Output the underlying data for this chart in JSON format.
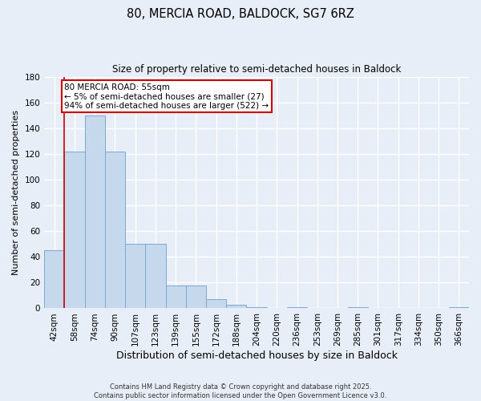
{
  "title": "80, MERCIA ROAD, BALDOCK, SG7 6RZ",
  "subtitle": "Size of property relative to semi-detached houses in Baldock",
  "xlabel": "Distribution of semi-detached houses by size in Baldock",
  "ylabel": "Number of semi-detached properties",
  "categories": [
    "42sqm",
    "58sqm",
    "74sqm",
    "90sqm",
    "107sqm",
    "123sqm",
    "139sqm",
    "155sqm",
    "172sqm",
    "188sqm",
    "204sqm",
    "220sqm",
    "236sqm",
    "253sqm",
    "269sqm",
    "285sqm",
    "301sqm",
    "317sqm",
    "334sqm",
    "350sqm",
    "366sqm"
  ],
  "values": [
    45,
    122,
    150,
    122,
    50,
    50,
    18,
    18,
    7,
    3,
    1,
    0,
    1,
    0,
    0,
    1,
    0,
    0,
    0,
    0,
    1
  ],
  "bar_color": "#c5d8ec",
  "bar_edge_color": "#7aaad0",
  "ylim": [
    0,
    180
  ],
  "yticks": [
    0,
    20,
    40,
    60,
    80,
    100,
    120,
    140,
    160,
    180
  ],
  "annotation_text": "80 MERCIA ROAD: 55sqm\n← 5% of semi-detached houses are smaller (27)\n94% of semi-detached houses are larger (522) →",
  "annotation_box_color": "#ffffff",
  "annotation_border_color": "#cc0000",
  "vline_color": "#cc0000",
  "background_color": "#e8eef7",
  "grid_color": "#ffffff",
  "footer_text": "Contains HM Land Registry data © Crown copyright and database right 2025.\nContains public sector information licensed under the Open Government Licence v3.0."
}
